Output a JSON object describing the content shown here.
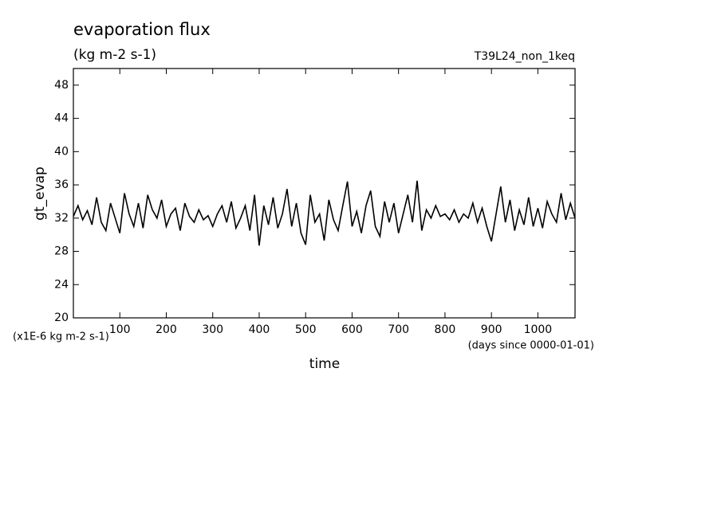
{
  "chart_data": {
    "type": "line",
    "title": "evaporation flux",
    "subtitle": "(kg m-2 s-1)",
    "annotation": "T39L24_non_1keq",
    "y_label": "gt_evap",
    "x_label": "time",
    "y_unit_note": "(x1E-6 kg m-2 s-1)",
    "x_unit_note": "(days since 0000-01-01)",
    "xlim": [
      0,
      1080
    ],
    "ylim": [
      20,
      50
    ],
    "xticks": [
      100,
      200,
      300,
      400,
      500,
      600,
      700,
      800,
      900,
      1000
    ],
    "yticks": [
      20,
      24,
      28,
      32,
      36,
      40,
      44,
      48
    ],
    "x": [
      0,
      10,
      20,
      30,
      40,
      50,
      60,
      70,
      80,
      90,
      100,
      110,
      120,
      130,
      140,
      150,
      160,
      170,
      180,
      190,
      200,
      210,
      220,
      230,
      240,
      250,
      260,
      270,
      280,
      290,
      300,
      310,
      320,
      330,
      340,
      350,
      360,
      370,
      380,
      390,
      400,
      410,
      420,
      430,
      440,
      450,
      460,
      470,
      480,
      490,
      500,
      510,
      520,
      530,
      540,
      550,
      560,
      570,
      580,
      590,
      600,
      610,
      620,
      630,
      640,
      650,
      660,
      670,
      680,
      690,
      700,
      710,
      720,
      730,
      740,
      750,
      760,
      770,
      780,
      790,
      800,
      810,
      820,
      830,
      840,
      850,
      860,
      870,
      880,
      890,
      900,
      910,
      920,
      930,
      940,
      950,
      960,
      970,
      980,
      990,
      1000,
      1010,
      1020,
      1030,
      1040,
      1050,
      1060,
      1070,
      1080
    ],
    "series": [
      {
        "color": "#000000",
        "values": [
          32.2,
          33.5,
          31.8,
          32.9,
          31.2,
          34.5,
          31.5,
          30.5,
          33.8,
          32.0,
          30.2,
          35.0,
          32.5,
          31.0,
          33.8,
          30.8,
          34.8,
          33.0,
          32.0,
          34.2,
          31.0,
          32.5,
          33.2,
          30.5,
          33.8,
          32.2,
          31.5,
          33.0,
          31.8,
          32.3,
          31.0,
          32.5,
          33.5,
          31.5,
          34.0,
          30.8,
          32.0,
          33.5,
          30.5,
          34.8,
          28.7,
          33.5,
          31.2,
          34.5,
          30.8,
          32.5,
          35.5,
          31.0,
          33.8,
          30.2,
          28.8,
          34.8,
          31.5,
          32.5,
          29.3,
          34.2,
          31.8,
          30.5,
          33.5,
          36.4,
          31.0,
          32.8,
          30.2,
          33.5,
          35.3,
          31.0,
          29.8,
          34.0,
          31.5,
          33.8,
          30.2,
          32.5,
          34.8,
          31.5,
          36.5,
          30.5,
          33.0,
          32.0,
          33.5,
          32.2,
          32.5,
          31.8,
          33.0,
          31.5,
          32.5,
          32.0,
          33.8,
          31.5,
          33.2,
          31.0,
          29.2,
          32.5,
          35.8,
          31.5,
          34.2,
          30.5,
          33.0,
          31.2,
          34.5,
          31.0,
          33.2,
          30.8,
          34.0,
          32.5,
          31.5,
          35.0,
          31.8,
          33.8,
          32.0
        ]
      }
    ]
  }
}
